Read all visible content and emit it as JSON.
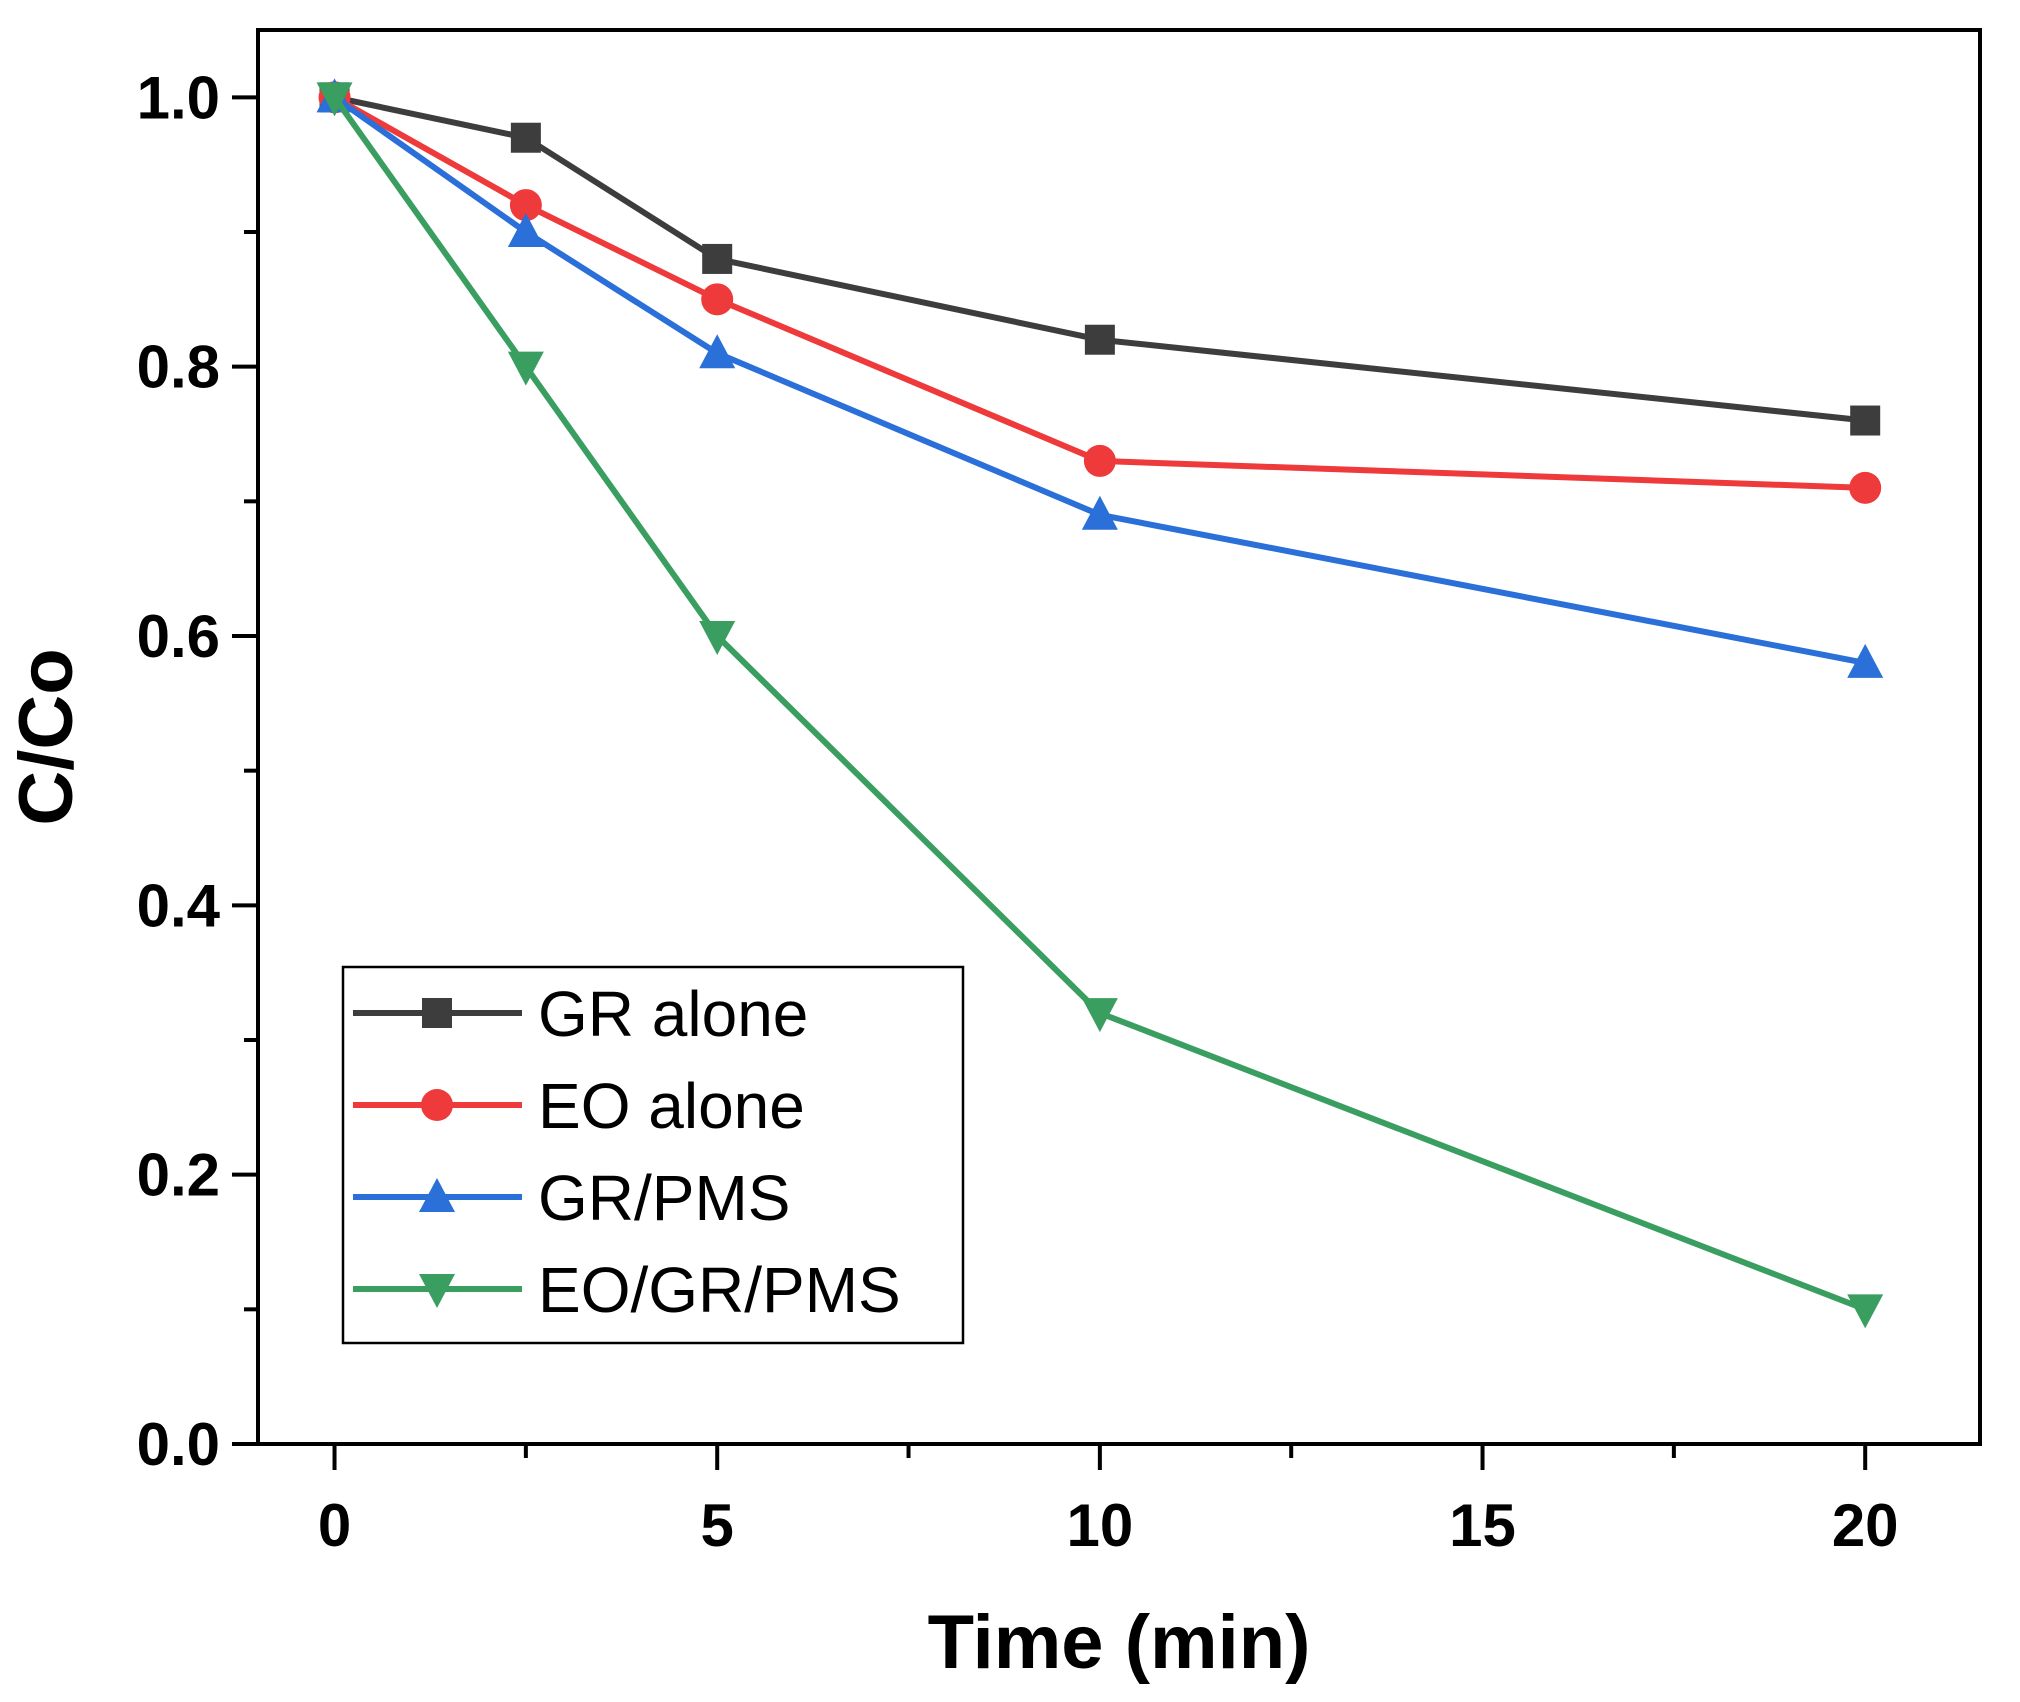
{
  "chart_data": {
    "type": "line",
    "title": "",
    "xlabel": "Time (min)",
    "ylabel": "C/Co",
    "xlim": [
      -1,
      21.5
    ],
    "ylim": [
      0,
      1.05
    ],
    "xticks": [
      0,
      5,
      10,
      15,
      20
    ],
    "xtick_labels": [
      "0",
      "5",
      "10",
      "15",
      "20"
    ],
    "xminor": [
      2.5,
      7.5,
      12.5,
      17.5
    ],
    "yticks": [
      0.0,
      0.2,
      0.4,
      0.6,
      0.8,
      1.0
    ],
    "ytick_labels": [
      "0.0",
      "0.2",
      "0.4",
      "0.6",
      "0.8",
      "1.0"
    ],
    "yminor": [
      0.1,
      0.3,
      0.5,
      0.7,
      0.9
    ],
    "grid": false,
    "legend_position": "bottom-left",
    "x": [
      0,
      2.5,
      5,
      10,
      20
    ],
    "series": [
      {
        "name": "GR alone",
        "color": "#3d3d3d",
        "marker": "square",
        "values": [
          1.0,
          0.97,
          0.88,
          0.82,
          0.76
        ]
      },
      {
        "name": "EO alone",
        "color": "#ee3a3a",
        "marker": "circle",
        "values": [
          1.0,
          0.92,
          0.85,
          0.73,
          0.71
        ]
      },
      {
        "name": "GR/PMS",
        "color": "#2b6fd8",
        "marker": "triangle-up",
        "values": [
          1.0,
          0.9,
          0.81,
          0.69,
          0.58
        ]
      },
      {
        "name": "EO/GR/PMS",
        "color": "#3b9e61",
        "marker": "triangle-down",
        "values": [
          1.0,
          0.8,
          0.6,
          0.32,
          0.1
        ]
      }
    ]
  }
}
